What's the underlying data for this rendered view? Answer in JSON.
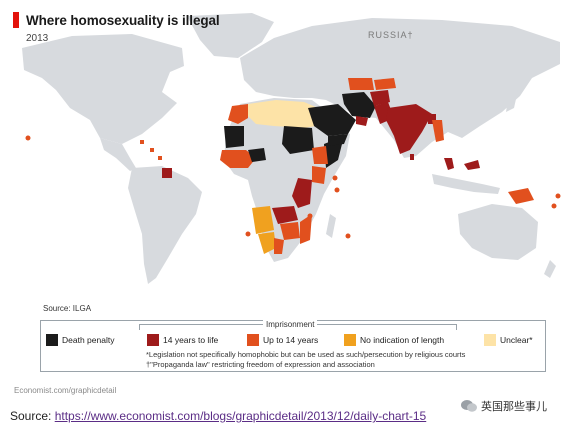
{
  "map": {
    "title": "Where homosexuality is illegal",
    "year": "2013",
    "labels": {
      "russia": "RUSSIA†"
    },
    "source_note": "Source: ILGA"
  },
  "legend": {
    "group_label": "Imprisonment",
    "items": [
      {
        "label": "Death penalty",
        "color": "#1b1b1b"
      },
      {
        "label": "14 years to life",
        "color": "#9e1b1b"
      },
      {
        "label": "Up to 14 years",
        "color": "#e1501e"
      },
      {
        "label": "No indication of length",
        "color": "#f0a11f"
      },
      {
        "label": "Unclear*",
        "color": "#fde3a7"
      }
    ],
    "notes": [
      "*Legislation not specifically homophobic but can be used as such/persecution by religious courts",
      "†\"Propaganda law\" restricting freedom of expression and association"
    ]
  },
  "colors": {
    "land": "#d7dade",
    "ocean": "#ffffff",
    "accent": "#e3120b"
  },
  "credit": "Economist.com/graphicdetail",
  "watermark": "英国那些事儿",
  "source": {
    "prefix": "Source: ",
    "url": "https://www.economist.com/blogs/graphicdetail/2013/12/daily-chart-15"
  }
}
